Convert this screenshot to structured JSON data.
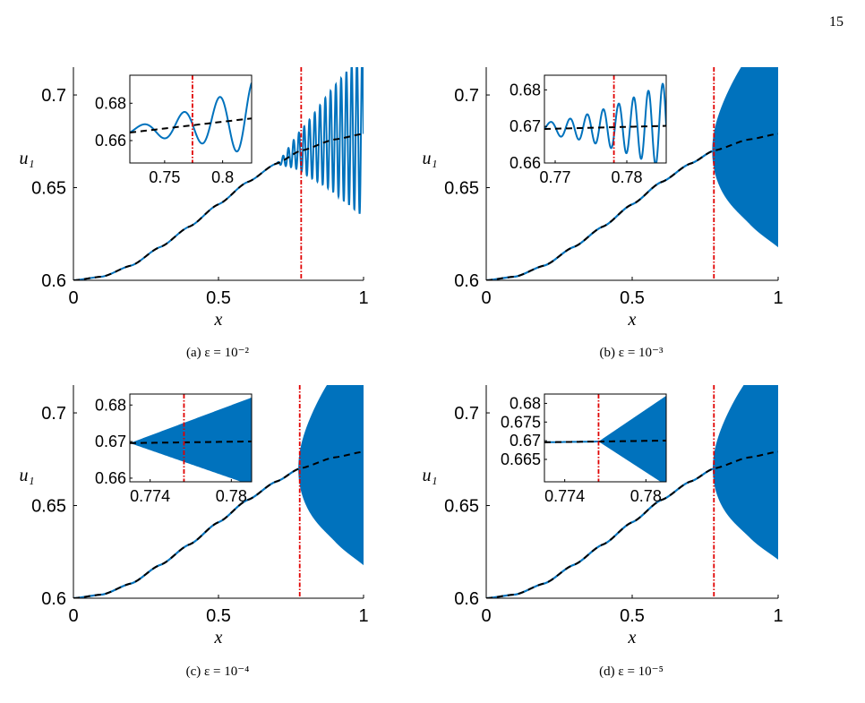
{
  "page_number": "15",
  "colors": {
    "numeric": "#0072BD",
    "asymptotic": "#000000",
    "marker": "#E00000"
  },
  "chart_data": [
    {
      "type": "line",
      "caption": "(a) ε = 10⁻²",
      "xlabel": "x",
      "ylabel": "u₁",
      "xlim": [
        0,
        1
      ],
      "ylim": [
        0.6,
        0.715
      ],
      "xticks": [
        "0",
        "0.5",
        "1"
      ],
      "yticks": [
        "0.6",
        "0.65",
        "0.7"
      ],
      "xtick_values": [
        0,
        0.5,
        1
      ],
      "ytick_values": [
        0.6,
        0.65,
        0.7
      ],
      "marker_x": 0.785,
      "onset_x": 0.7,
      "amplitude_max": 0.045,
      "oscillation_style": "discrete-cycles",
      "grid": false,
      "series": [
        {
          "values": [
            [
              0,
              0.6
            ],
            [
              0.1,
              0.602
            ],
            [
              0.2,
              0.608
            ],
            [
              0.3,
              0.618
            ],
            [
              0.4,
              0.629
            ],
            [
              0.5,
              0.641
            ],
            [
              0.6,
              0.653
            ],
            [
              0.7,
              0.663
            ],
            [
              0.785,
              0.67
            ],
            [
              0.9,
              0.676
            ],
            [
              1.0,
              0.679
            ]
          ],
          "style": "solid"
        },
        {
          "values": [
            [
              0,
              0.6
            ],
            [
              0.1,
              0.602
            ],
            [
              0.2,
              0.608
            ],
            [
              0.3,
              0.618
            ],
            [
              0.4,
              0.629
            ],
            [
              0.5,
              0.641
            ],
            [
              0.6,
              0.653
            ],
            [
              0.7,
              0.663
            ],
            [
              0.785,
              0.67
            ],
            [
              0.9,
              0.676
            ],
            [
              1.0,
              0.679
            ]
          ],
          "style": "dashed"
        }
      ],
      "inset": {
        "xlim": [
          0.72,
          0.825
        ],
        "ylim": [
          0.648,
          0.695
        ],
        "xticks": [
          "0.75",
          "0.8"
        ],
        "xtick_values": [
          0.75,
          0.8
        ],
        "yticks": [
          "0.66",
          "0.68"
        ],
        "ytick_values": [
          0.66,
          0.68
        ],
        "marker_x": 0.774,
        "onset_x": 0.72,
        "amplitude_max": 0.02,
        "oscillation_style": "discrete-cycles"
      }
    },
    {
      "type": "line",
      "caption": "(b) ε = 10⁻³",
      "xlabel": "x",
      "ylabel": "u₁",
      "xlim": [
        0,
        1
      ],
      "ylim": [
        0.6,
        0.715
      ],
      "xticks": [
        "0",
        "0.5",
        "1"
      ],
      "yticks": [
        "0.6",
        "0.65",
        "0.7"
      ],
      "xtick_values": [
        0,
        0.5,
        1
      ],
      "ytick_values": [
        0.6,
        0.65,
        0.7
      ],
      "marker_x": 0.78,
      "onset_x": 0.775,
      "amplitude_max": 0.061,
      "oscillation_style": "filled",
      "grid": false,
      "series": [
        {
          "values": [
            [
              0,
              0.6
            ],
            [
              0.1,
              0.602
            ],
            [
              0.2,
              0.608
            ],
            [
              0.3,
              0.618
            ],
            [
              0.4,
              0.629
            ],
            [
              0.5,
              0.641
            ],
            [
              0.6,
              0.653
            ],
            [
              0.7,
              0.663
            ],
            [
              0.78,
              0.67
            ],
            [
              0.9,
              0.676
            ],
            [
              1.0,
              0.679
            ]
          ],
          "style": "solid"
        },
        {
          "values": [
            [
              0,
              0.6
            ],
            [
              0.1,
              0.602
            ],
            [
              0.2,
              0.608
            ],
            [
              0.3,
              0.618
            ],
            [
              0.4,
              0.629
            ],
            [
              0.5,
              0.641
            ],
            [
              0.6,
              0.653
            ],
            [
              0.7,
              0.663
            ],
            [
              0.78,
              0.67
            ],
            [
              0.9,
              0.676
            ],
            [
              1.0,
              0.679
            ]
          ],
          "style": "dashed"
        }
      ],
      "inset": {
        "xlim": [
          0.7685,
          0.7855
        ],
        "ylim": [
          0.66,
          0.684
        ],
        "xticks": [
          "0.77",
          "0.78"
        ],
        "xtick_values": [
          0.77,
          0.78
        ],
        "yticks": [
          "0.66",
          "0.67",
          "0.68"
        ],
        "ytick_values": [
          0.66,
          0.67,
          0.68
        ],
        "marker_x": 0.7782,
        "onset_x": 0.7685,
        "amplitude_max": 0.012,
        "oscillation_style": "discrete-cycles"
      }
    },
    {
      "type": "line",
      "caption": "(c) ε = 10⁻⁴",
      "xlabel": "x",
      "ylabel": "u₁",
      "xlim": [
        0,
        1
      ],
      "ylim": [
        0.6,
        0.715
      ],
      "xticks": [
        "0",
        "0.5",
        "1"
      ],
      "yticks": [
        "0.6",
        "0.65",
        "0.7"
      ],
      "xtick_values": [
        0,
        0.5,
        1
      ],
      "ytick_values": [
        0.6,
        0.65,
        0.7
      ],
      "marker_x": 0.78,
      "onset_x": 0.776,
      "amplitude_max": 0.061,
      "oscillation_style": "filled",
      "grid": false,
      "series": [
        {
          "values": [
            [
              0,
              0.6
            ],
            [
              0.1,
              0.602
            ],
            [
              0.2,
              0.608
            ],
            [
              0.3,
              0.618
            ],
            [
              0.4,
              0.629
            ],
            [
              0.5,
              0.641
            ],
            [
              0.6,
              0.653
            ],
            [
              0.7,
              0.663
            ],
            [
              0.78,
              0.67
            ],
            [
              0.9,
              0.676
            ],
            [
              1.0,
              0.679
            ]
          ],
          "style": "solid"
        },
        {
          "values": [
            [
              0,
              0.6
            ],
            [
              0.1,
              0.602
            ],
            [
              0.2,
              0.608
            ],
            [
              0.3,
              0.618
            ],
            [
              0.4,
              0.629
            ],
            [
              0.5,
              0.641
            ],
            [
              0.6,
              0.653
            ],
            [
              0.7,
              0.663
            ],
            [
              0.78,
              0.67
            ],
            [
              0.9,
              0.676
            ],
            [
              1.0,
              0.679
            ]
          ],
          "style": "dashed"
        }
      ],
      "inset": {
        "xlim": [
          0.7725,
          0.7815
        ],
        "ylim": [
          0.659,
          0.683
        ],
        "xticks": [
          "0.774",
          "0.78"
        ],
        "xtick_values": [
          0.774,
          0.78
        ],
        "yticks": [
          "0.66",
          "0.67",
          "0.68"
        ],
        "ytick_values": [
          0.66,
          0.67,
          0.68
        ],
        "marker_x": 0.7765,
        "onset_x": 0.7725,
        "amplitude_max": 0.012,
        "oscillation_style": "filled"
      }
    },
    {
      "type": "line",
      "caption": "(d) ε = 10⁻⁵",
      "xlabel": "x",
      "ylabel": "u₁",
      "xlim": [
        0,
        1
      ],
      "ylim": [
        0.6,
        0.715
      ],
      "xticks": [
        "0",
        "0.5",
        "1"
      ],
      "yticks": [
        "0.6",
        "0.65",
        "0.7"
      ],
      "xtick_values": [
        0,
        0.5,
        1
      ],
      "ytick_values": [
        0.6,
        0.65,
        0.7
      ],
      "marker_x": 0.78,
      "onset_x": 0.777,
      "amplitude_max": 0.058,
      "oscillation_style": "filled",
      "grid": false,
      "series": [
        {
          "values": [
            [
              0,
              0.6
            ],
            [
              0.1,
              0.602
            ],
            [
              0.2,
              0.608
            ],
            [
              0.3,
              0.618
            ],
            [
              0.4,
              0.629
            ],
            [
              0.5,
              0.641
            ],
            [
              0.6,
              0.653
            ],
            [
              0.7,
              0.663
            ],
            [
              0.78,
              0.67
            ],
            [
              0.9,
              0.676
            ],
            [
              1.0,
              0.679
            ]
          ],
          "style": "solid"
        },
        {
          "values": [
            [
              0,
              0.6
            ],
            [
              0.1,
              0.602
            ],
            [
              0.2,
              0.608
            ],
            [
              0.3,
              0.618
            ],
            [
              0.4,
              0.629
            ],
            [
              0.5,
              0.641
            ],
            [
              0.6,
              0.653
            ],
            [
              0.7,
              0.663
            ],
            [
              0.78,
              0.67
            ],
            [
              0.9,
              0.676
            ],
            [
              1.0,
              0.679
            ]
          ],
          "style": "dashed"
        }
      ],
      "inset": {
        "xlim": [
          0.7725,
          0.7815
        ],
        "ylim": [
          0.659,
          0.6825
        ],
        "xticks": [
          "0.774",
          "0.78"
        ],
        "xtick_values": [
          0.774,
          0.78
        ],
        "yticks": [
          "0.665",
          "0.67",
          "0.675",
          "0.68"
        ],
        "ytick_values": [
          0.665,
          0.67,
          0.675,
          0.68
        ],
        "marker_x": 0.7765,
        "onset_x": 0.7765,
        "amplitude_max": 0.012,
        "oscillation_style": "filled"
      }
    }
  ]
}
